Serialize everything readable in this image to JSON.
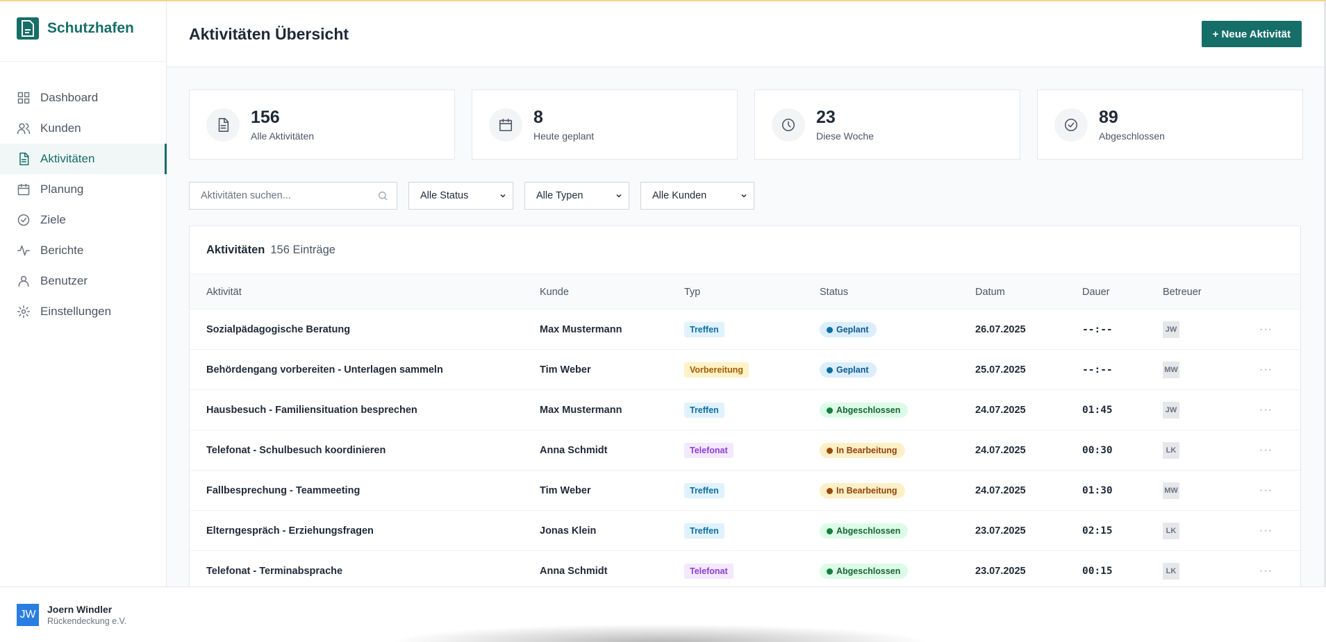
{
  "app": {
    "name": "Schutzhafen"
  },
  "sidebar": {
    "items": [
      {
        "label": "Dashboard",
        "icon": "grid-icon"
      },
      {
        "label": "Kunden",
        "icon": "users-icon"
      },
      {
        "label": "Aktivitäten",
        "icon": "document-icon"
      },
      {
        "label": "Planung",
        "icon": "calendar-icon"
      },
      {
        "label": "Ziele",
        "icon": "check-circle-icon"
      },
      {
        "label": "Berichte",
        "icon": "activity-icon"
      },
      {
        "label": "Benutzer",
        "icon": "user-icon"
      },
      {
        "label": "Einstellungen",
        "icon": "gear-icon"
      }
    ],
    "active": "Aktivitäten"
  },
  "user": {
    "initials": "JW",
    "name": "Joern Windler",
    "org": "Rückendeckung e.V."
  },
  "header": {
    "title": "Aktivitäten Übersicht",
    "new_button": "+ Neue Aktivität"
  },
  "stats": [
    {
      "value": "156",
      "label": "Alle Aktivitäten"
    },
    {
      "value": "8",
      "label": "Heute geplant"
    },
    {
      "value": "23",
      "label": "Diese Woche"
    },
    {
      "value": "89",
      "label": "Abgeschlossen"
    }
  ],
  "filters": {
    "search_placeholder": "Aktivitäten suchen...",
    "status": "Alle Status",
    "typ": "Alle Typen",
    "kunden": "Alle Kunden"
  },
  "table": {
    "title": "Aktivitäten",
    "count": "156 Einträge",
    "columns": [
      "Aktivität",
      "Kunde",
      "Typ",
      "Status",
      "Datum",
      "Dauer",
      "Betreuer"
    ],
    "rows": [
      {
        "aktivitaet": "Sozialpädagogische Beratung",
        "kunde": "Max Mustermann",
        "typ": "Treffen",
        "status": "Geplant",
        "datum": "26.07.2025",
        "dauer": "--:--",
        "betreuer": "JW",
        "more": "···"
      },
      {
        "aktivitaet": "Behördengang vorbereiten - Unterlagen sammeln",
        "kunde": "Tim Weber",
        "typ": "Vorbereitung",
        "status": "Geplant",
        "datum": "25.07.2025",
        "dauer": "--:--",
        "betreuer": "MW",
        "more": "···"
      },
      {
        "aktivitaet": "Hausbesuch - Familiensituation besprechen",
        "kunde": "Max Mustermann",
        "typ": "Treffen",
        "status": "Abgeschlossen",
        "datum": "24.07.2025",
        "dauer": "01:45",
        "betreuer": "JW",
        "more": "···"
      },
      {
        "aktivitaet": "Telefonat - Schulbesuch koordinieren",
        "kunde": "Anna Schmidt",
        "typ": "Telefonat",
        "status": "In Bearbeitung",
        "datum": "24.07.2025",
        "dauer": "00:30",
        "betreuer": "LK",
        "more": "···"
      },
      {
        "aktivitaet": "Fallbesprechung - Teammeeting",
        "kunde": "Tim Weber",
        "typ": "Treffen",
        "status": "In Bearbeitung",
        "datum": "24.07.2025",
        "dauer": "01:30",
        "betreuer": "MW",
        "more": "···"
      },
      {
        "aktivitaet": "Elterngespräch - Erziehungsfragen",
        "kunde": "Jonas Klein",
        "typ": "Treffen",
        "status": "Abgeschlossen",
        "datum": "23.07.2025",
        "dauer": "02:15",
        "betreuer": "LK",
        "more": "···"
      },
      {
        "aktivitaet": "Telefonat - Terminabsprache",
        "kunde": "Anna Schmidt",
        "typ": "Telefonat",
        "status": "Abgeschlossen",
        "datum": "23.07.2025",
        "dauer": "00:15",
        "betreuer": "LK",
        "more": "···"
      }
    ]
  },
  "colors": {
    "brand": "#166e68",
    "avatar": "#2a7de1"
  }
}
